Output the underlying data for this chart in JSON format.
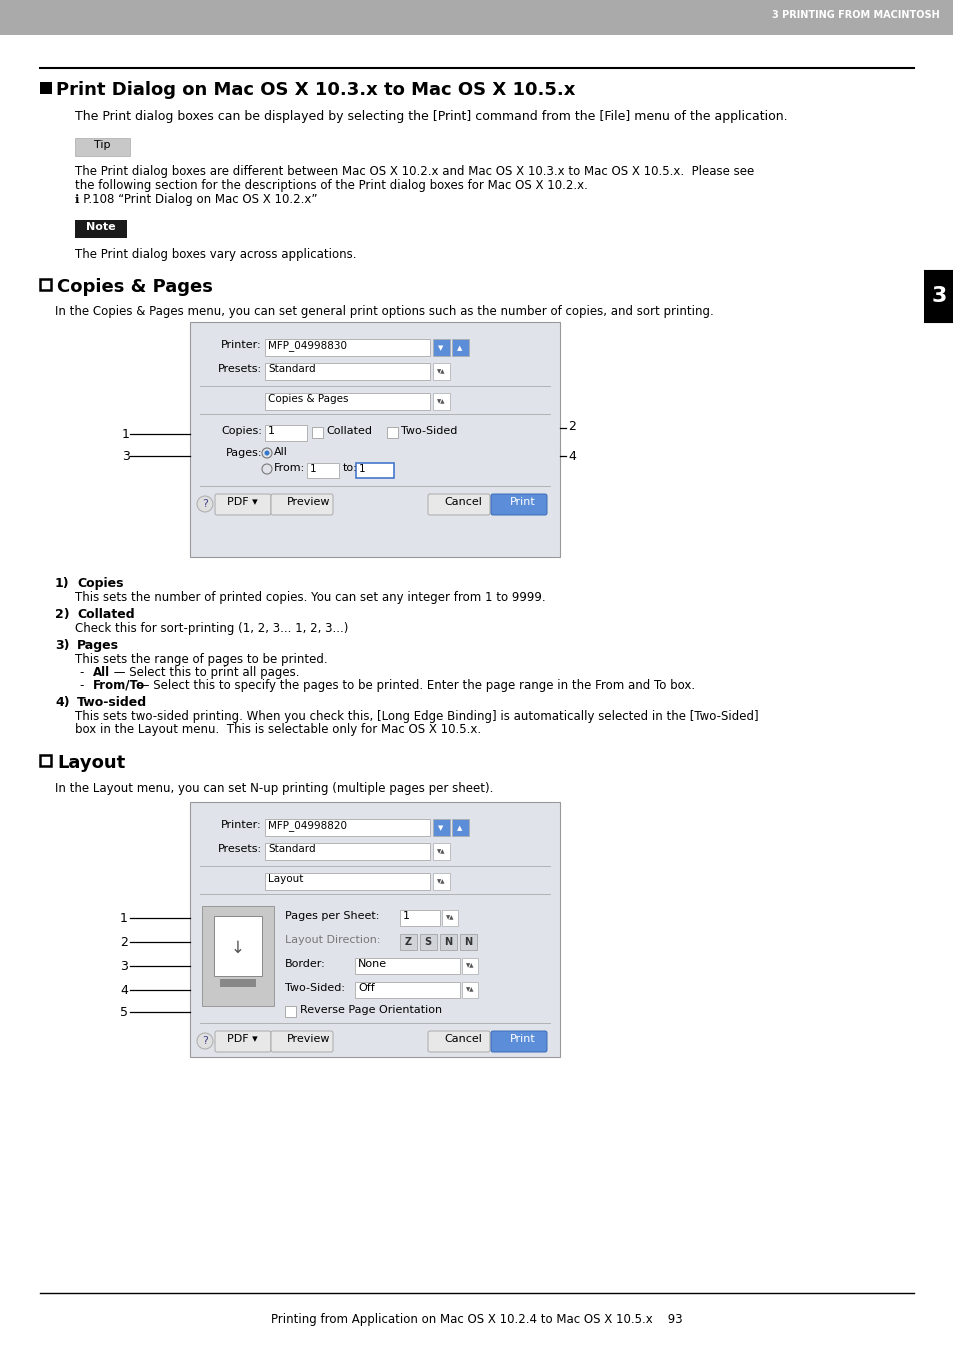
{
  "header_bg": "#aaaaaa",
  "header_text": "3 PRINTING FROM MACINTOSH",
  "header_text_color": "#ffffff",
  "page_bg": "#ffffff",
  "title": "Print Dialog on Mac OS X 10.3.x to Mac OS X 10.5.x",
  "intro_text": "The Print dialog boxes can be displayed by selecting the [Print] command from the [File] menu of the application.",
  "tip_label": "Tip",
  "tip_bg": "#cccccc",
  "tip_lines": [
    "The Print dialog boxes are different between Mac OS X 10.2.x and Mac OS X 10.3.x to Mac OS X 10.5.x.  Please see",
    "the following section for the descriptions of the Print dialog boxes for Mac OS X 10.2.x.",
    "ℹ P.108 “Print Dialog on Mac OS X 10.2.x”"
  ],
  "note_label": "Note",
  "note_bg": "#1a1a1a",
  "note_body": "The Print dialog boxes vary across applications.",
  "section1_title": "Copies & Pages",
  "section1_intro": "In the Copies & Pages menu, you can set general print options such as the number of copies, and sort printing.",
  "section2_title": "Layout",
  "section2_intro": "In the Layout menu, you can set N-up printing (multiple pages per sheet).",
  "tab_number": "3",
  "footer_text": "Printing from Application on Mac OS X 10.2.4 to Mac OS X 10.5.x    93",
  "dialog1_printer": "MFP_04998830",
  "dialog1_presets": "Standard",
  "dialog1_dropdown": "Copies & Pages",
  "dialog2_printer": "MFP_04998820",
  "dialog2_presets": "Standard",
  "dialog2_dropdown": "Layout",
  "dlg_bg": "#e0e4ea",
  "dlg_border": "#999999",
  "btn_blue": "#5b8dd9",
  "btn_gray": "#d8d8d8"
}
